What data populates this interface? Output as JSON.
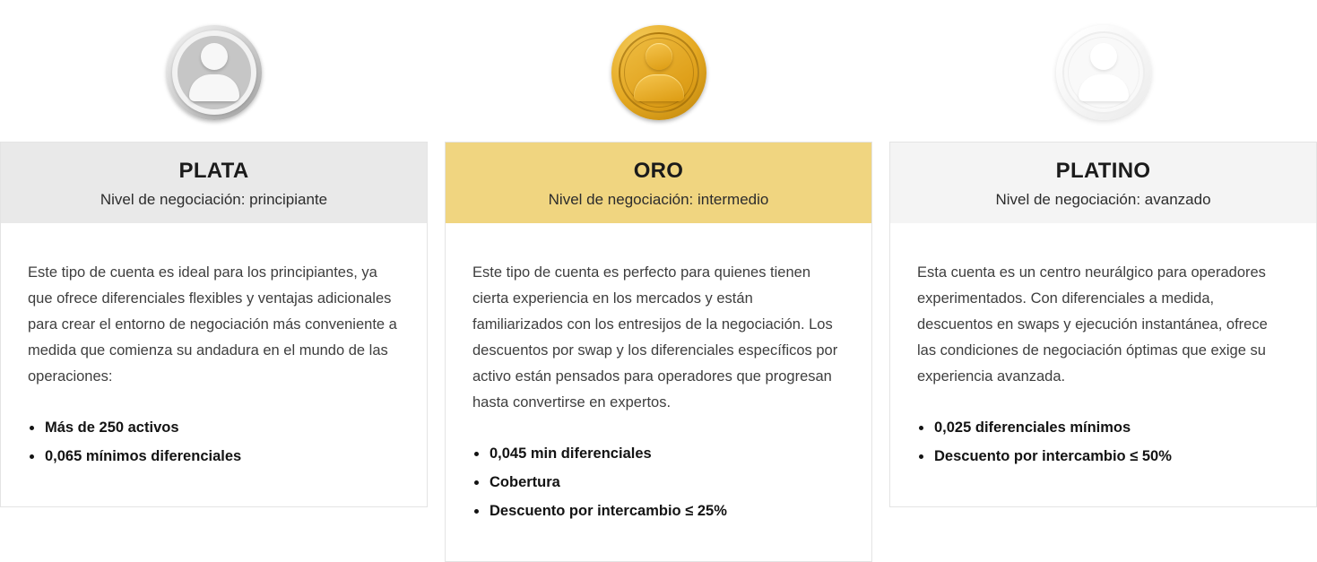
{
  "page": {
    "background": "#ffffff"
  },
  "cards": [
    {
      "id": "plata",
      "medal_icon": "silver-medal-icon",
      "title": "PLATA",
      "subtitle": "Nivel de negociación: principiante",
      "header_bg": "#e9e9e9",
      "description": "Este tipo de cuenta es ideal para los principiantes, ya que ofrece diferenciales flexibles y ventajas adicionales para crear el entorno de negociación más conveniente a medida que comienza su andadura en el mundo de las operaciones:",
      "bullets": [
        "Más de 250 activos",
        "0,065 mínimos diferenciales"
      ]
    },
    {
      "id": "oro",
      "medal_icon": "gold-medal-icon",
      "title": "ORO",
      "subtitle": "Nivel de negociación: intermedio",
      "header_bg": "#f0d580",
      "description": "Este tipo de cuenta es perfecto para quienes tienen cierta experiencia en los mercados y están familiarizados con los entresijos de la negociación. Los descuentos por swap y los diferenciales específicos por activo están pensados para operadores que progresan hasta convertirse en expertos.",
      "bullets": [
        "0,045 min diferenciales",
        "Cobertura",
        "Descuento por intercambio ≤ 25%"
      ]
    },
    {
      "id": "platino",
      "medal_icon": "platinum-medal-icon",
      "title": "PLATINO",
      "subtitle": "Nivel de negociación: avanzado",
      "header_bg": "#f4f4f4",
      "description": "Esta cuenta es un centro neurálgico para operadores experimentados. Con diferenciales a medida, descuentos en swaps y ejecución instantánea, ofrece las condiciones de negociación óptimas que exige su experiencia avanzada.",
      "bullets": [
        "0,025 diferenciales mínimos",
        "Descuento por intercambio ≤ 50%"
      ]
    }
  ]
}
